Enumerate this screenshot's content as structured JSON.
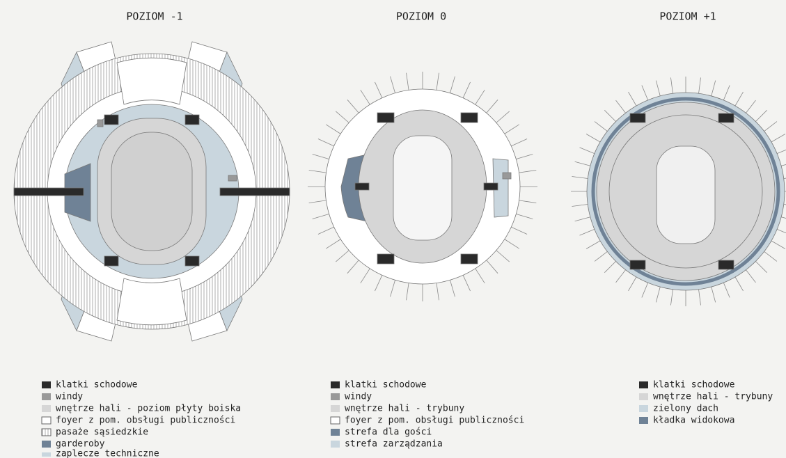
{
  "panels": [
    {
      "title": "POZIOM -1",
      "legend": [
        "klatki schodowe",
        "windy",
        "wnętrze hali - poziom płyty boiska",
        "foyer z pom. obsługi publiczności",
        "pasaże sąsiedzkie",
        "garderoby",
        "zaplecze techniczne"
      ]
    },
    {
      "title": "POZIOM 0",
      "legend": [
        "klatki schodowe",
        "windy",
        "wnętrze hali - trybuny",
        "foyer z pom. obsługi publiczności",
        "strefa dla gości",
        "strefa zarządzania"
      ]
    },
    {
      "title": "POZIOM +1",
      "legend": [
        "klatki schodowe",
        "wnętrze hali - trybuny",
        "zielony dach",
        "kładka widokowa"
      ]
    }
  ]
}
